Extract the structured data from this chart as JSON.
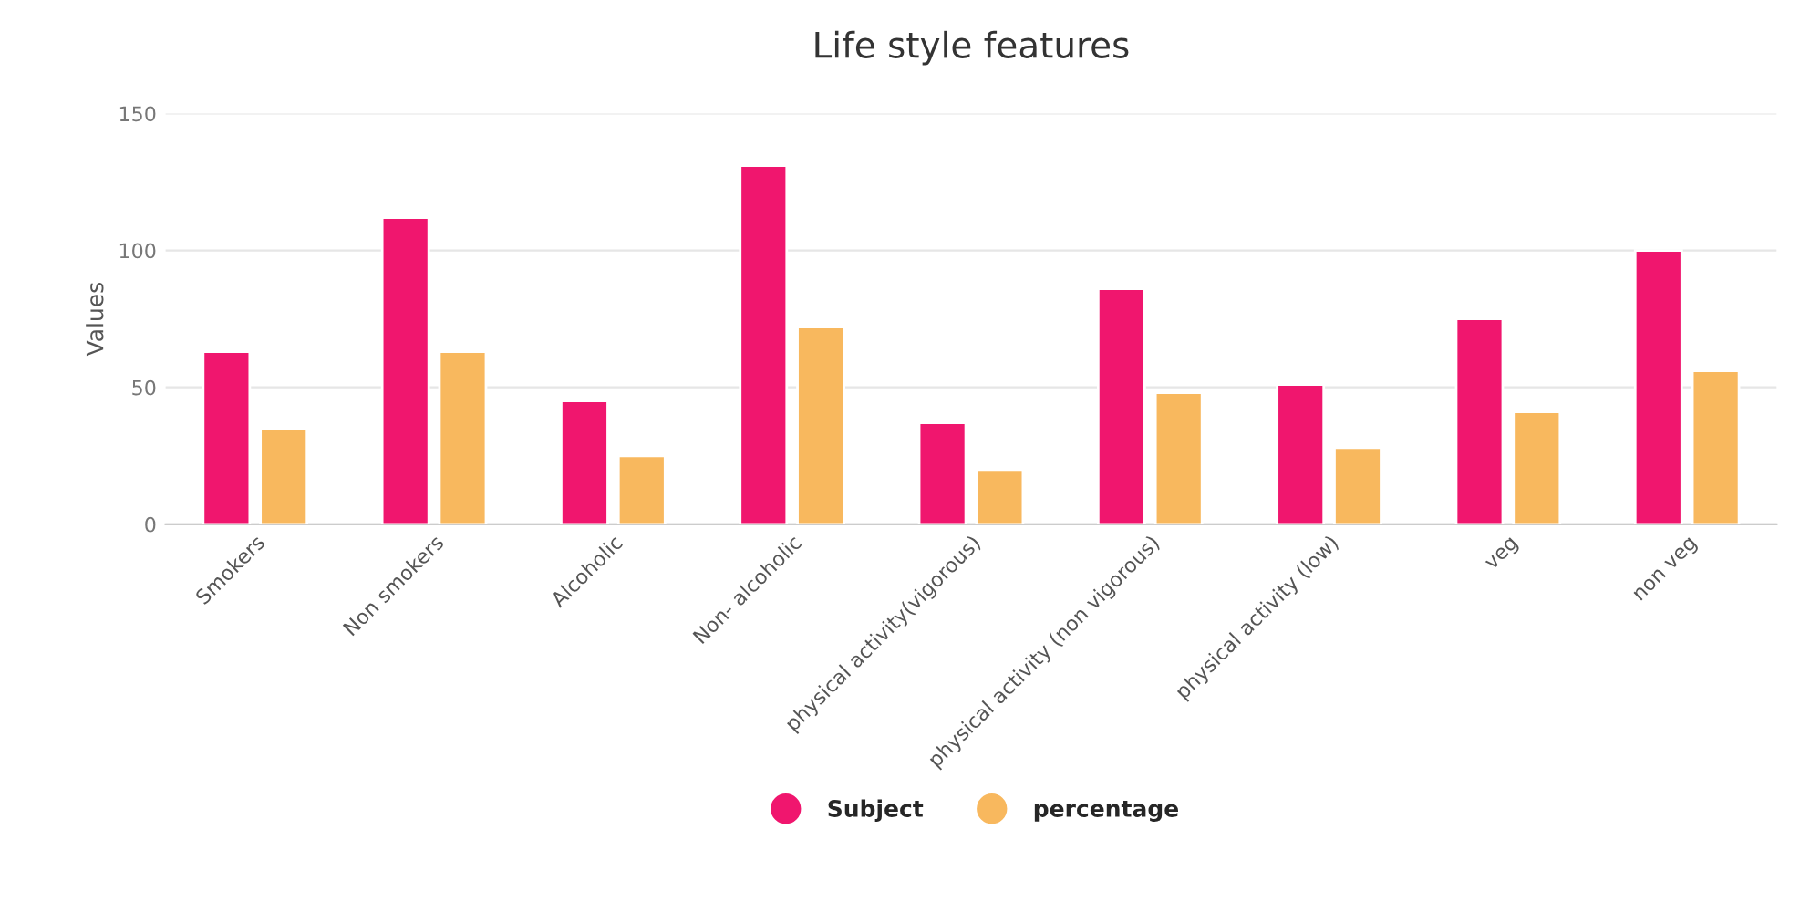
{
  "chart_data": {
    "type": "bar",
    "title": "Life style features",
    "ylabel": "Values",
    "categories": [
      "Smokers",
      "Non smokers",
      "Alcoholic",
      "Non- alcoholic",
      "physical activity(vigorous)",
      "physical activity (non vigorous)",
      "physical activity (low)",
      "veg",
      "non veg"
    ],
    "series": [
      {
        "name": "Subject",
        "color": "#f0166e",
        "values": [
          63,
          112,
          45,
          131,
          37,
          86,
          51,
          75,
          100
        ]
      },
      {
        "name": "percentage",
        "color": "#f8b85e",
        "values": [
          35,
          63,
          25,
          72,
          20,
          48,
          28,
          41,
          56
        ]
      }
    ],
    "ylim": [
      0,
      150
    ],
    "yticks": [
      0,
      50,
      100,
      150
    ],
    "grid": "y",
    "legend": "bottom"
  }
}
